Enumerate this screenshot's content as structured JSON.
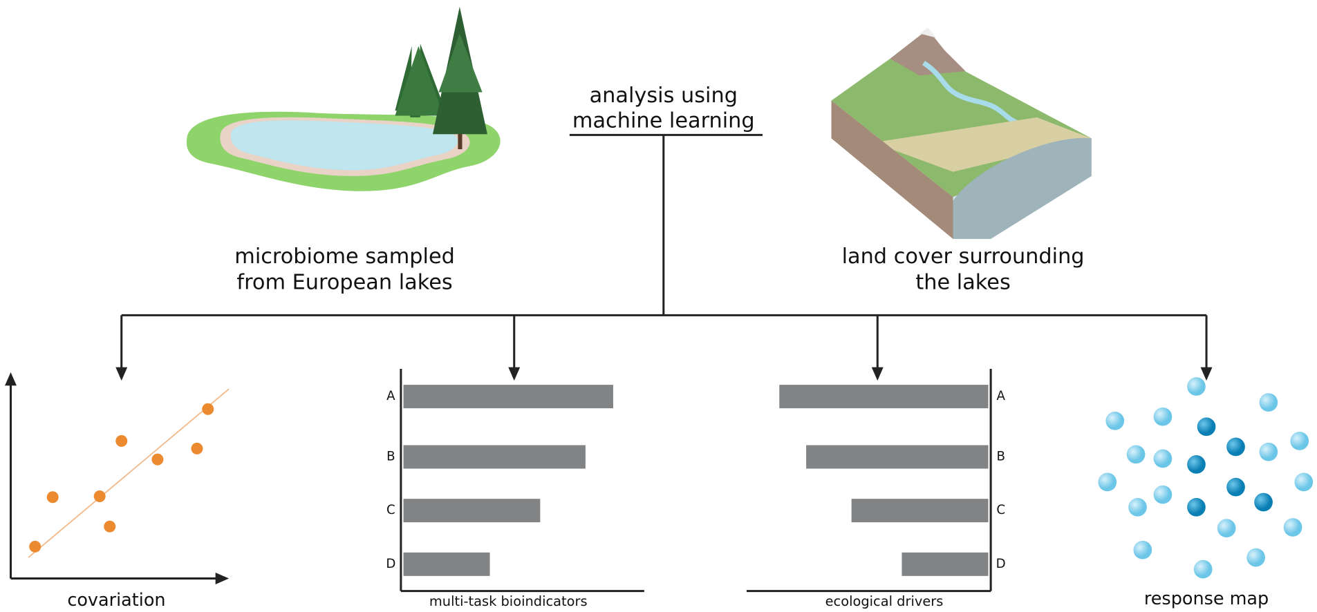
{
  "center": {
    "lines": [
      "analysis using",
      "machine learning"
    ]
  },
  "inputs": [
    {
      "lines": [
        "microbiome sampled",
        "from European lakes"
      ]
    },
    {
      "lines": [
        "land cover surrounding",
        "the lakes"
      ]
    }
  ],
  "outputs": [
    {
      "label": "covariation"
    },
    {
      "label": "multi-task bioindicators",
      "bar_labels": [
        "A",
        "B",
        "C",
        "D"
      ]
    },
    {
      "label": "ecological drivers",
      "bar_labels": [
        "A",
        "B",
        "C",
        "D"
      ]
    },
    {
      "label": "response map"
    }
  ]
}
